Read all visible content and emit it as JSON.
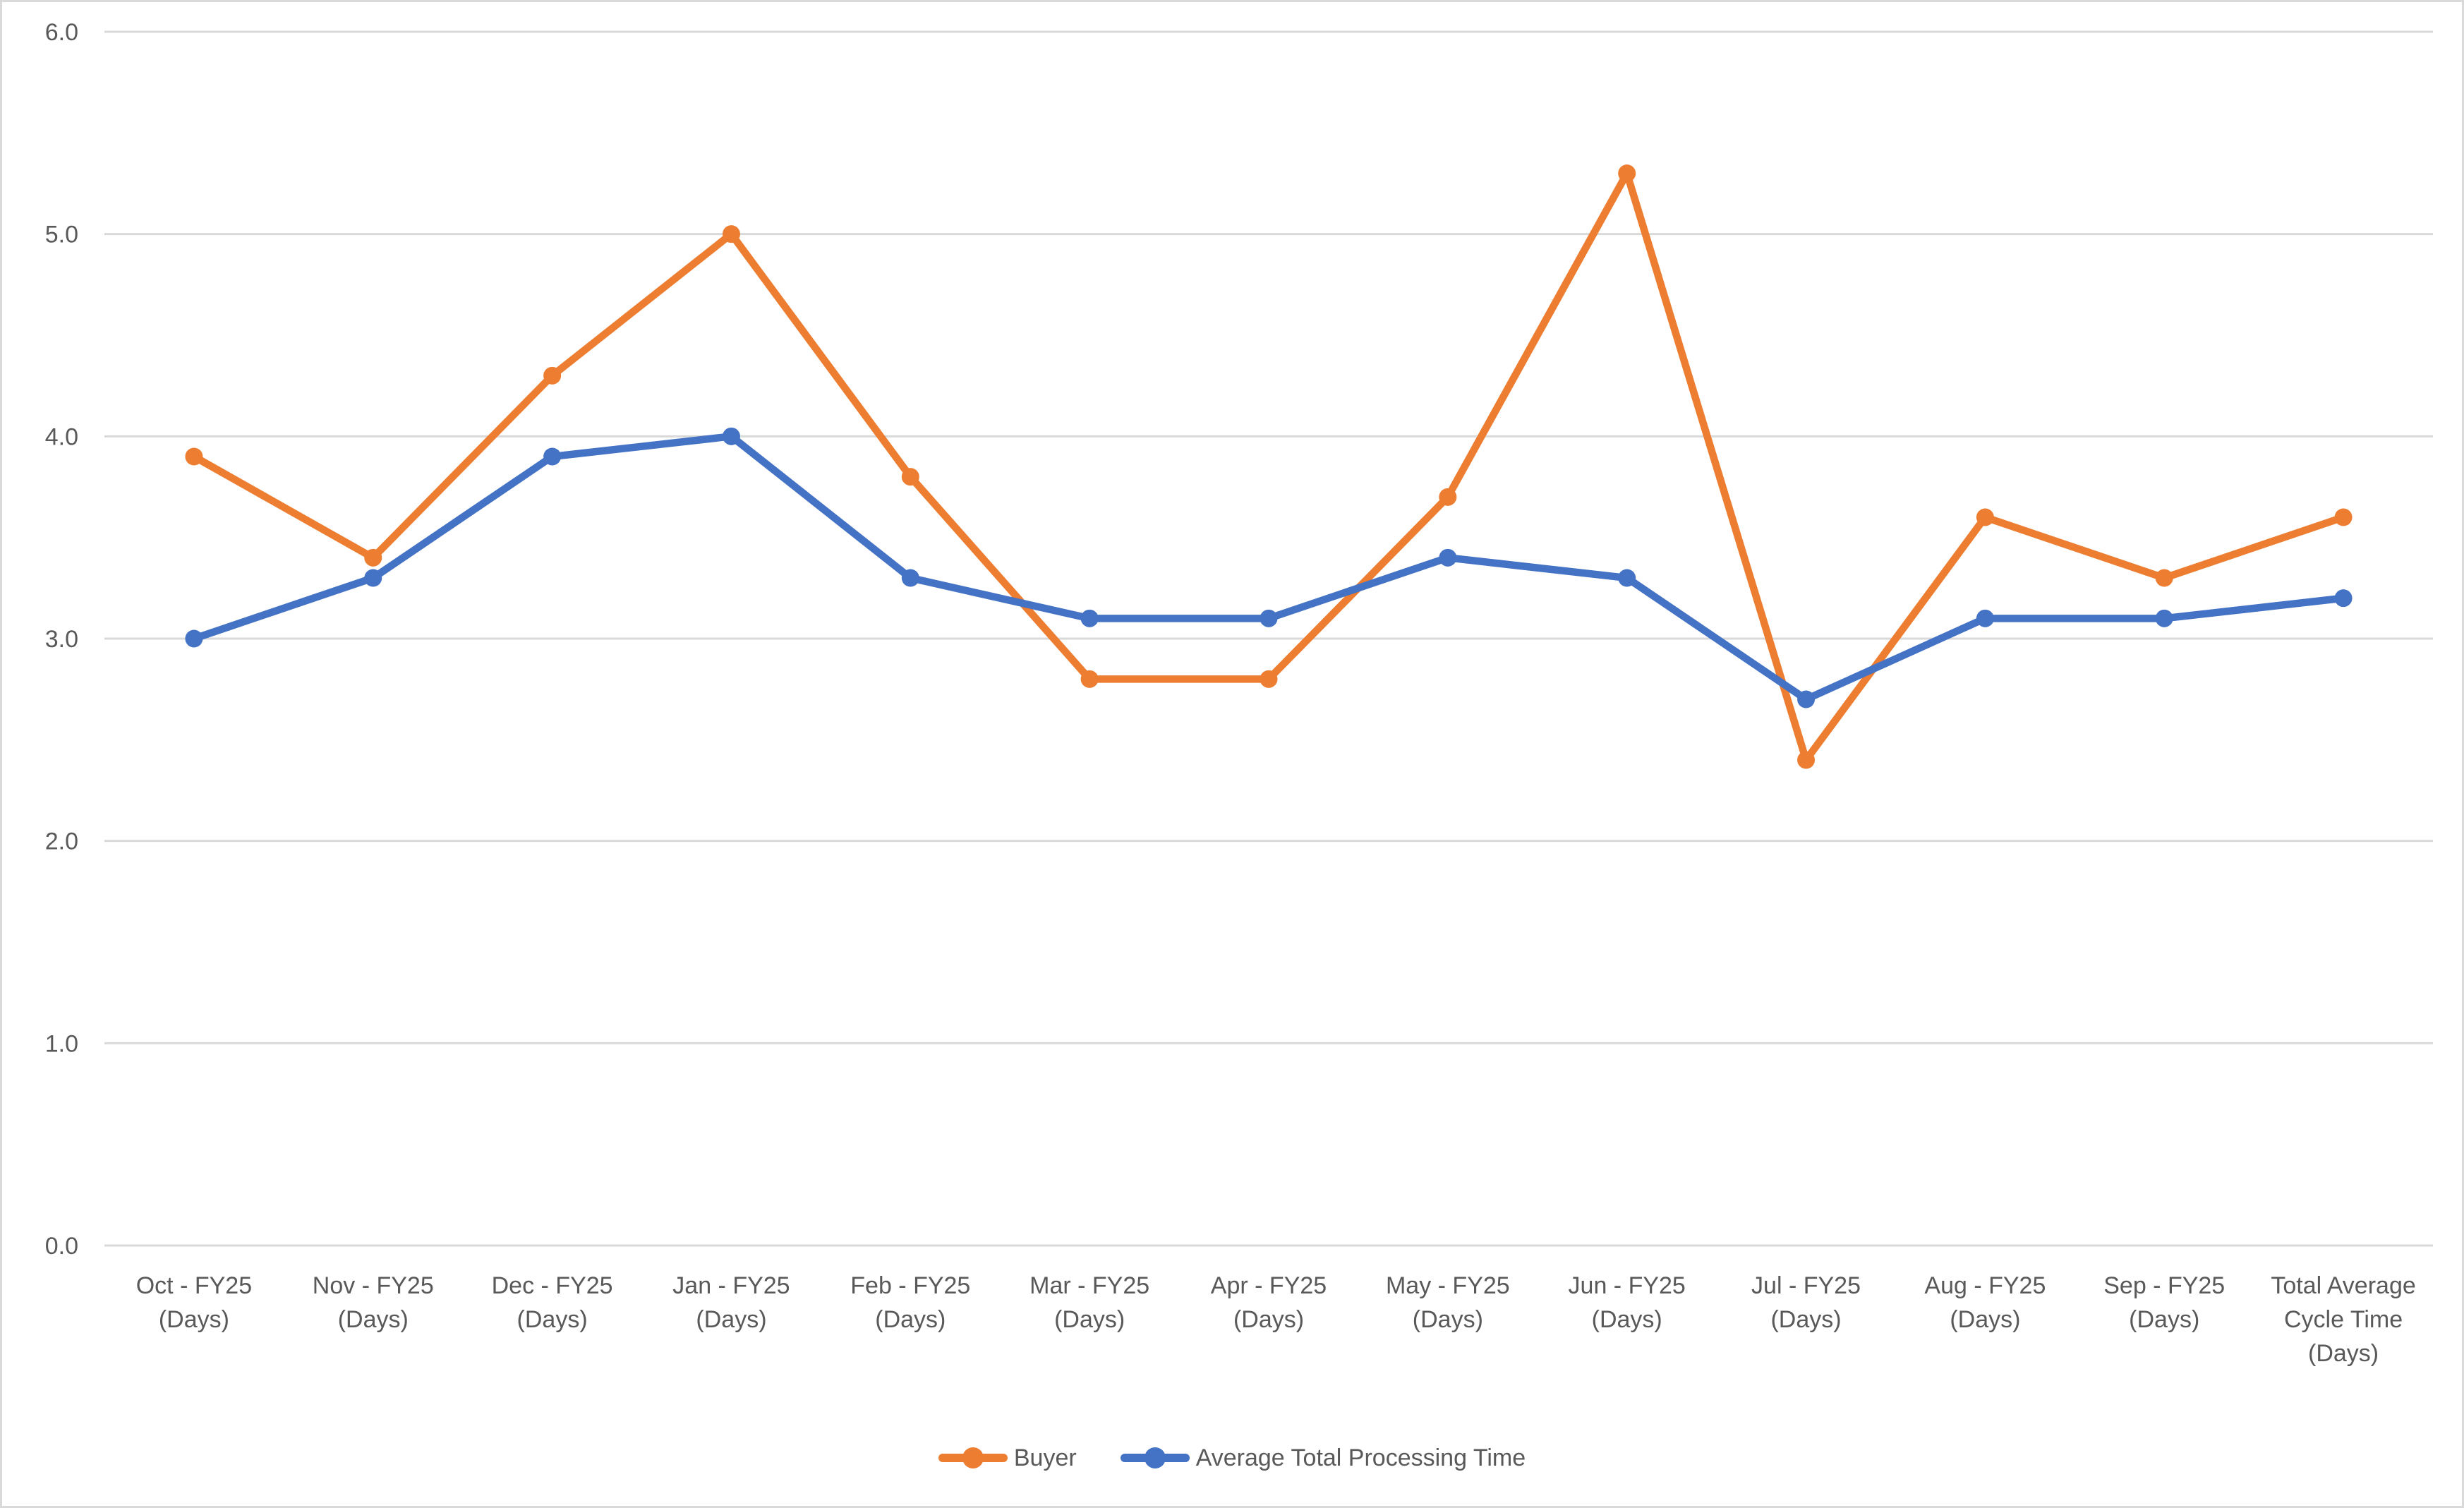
{
  "chart_data": {
    "type": "line",
    "title": "",
    "xlabel": "",
    "ylabel": "",
    "ylim": [
      0,
      6
    ],
    "ytick_step": 1.0,
    "ytick_labels": [
      "0.0",
      "1.0",
      "2.0",
      "3.0",
      "4.0",
      "5.0",
      "6.0"
    ],
    "grid": true,
    "legend_position": "bottom-center",
    "categories": [
      "Oct - FY25 (Days)",
      "Nov - FY25 (Days)",
      "Dec - FY25 (Days)",
      "Jan - FY25 (Days)",
      "Feb - FY25 (Days)",
      "Mar - FY25 (Days)",
      "Apr - FY25 (Days)",
      "May - FY25 (Days)",
      "Jun - FY25 (Days)",
      "Jul - FY25 (Days)",
      "Aug - FY25 (Days)",
      "Sep - FY25 (Days)",
      "Total Average Cycle Time (Days)"
    ],
    "category_label_lines": [
      [
        "Oct - FY25",
        "(Days)"
      ],
      [
        "Nov - FY25",
        "(Days)"
      ],
      [
        "Dec - FY25",
        "(Days)"
      ],
      [
        "Jan - FY25",
        "(Days)"
      ],
      [
        "Feb - FY25",
        "(Days)"
      ],
      [
        "Mar - FY25",
        "(Days)"
      ],
      [
        "Apr - FY25",
        "(Days)"
      ],
      [
        "May - FY25",
        "(Days)"
      ],
      [
        "Jun - FY25",
        "(Days)"
      ],
      [
        "Jul - FY25",
        "(Days)"
      ],
      [
        "Aug - FY25",
        "(Days)"
      ],
      [
        "Sep - FY25",
        "(Days)"
      ],
      [
        "Total Average",
        "Cycle Time",
        "(Days)"
      ]
    ],
    "series": [
      {
        "name": "Buyer",
        "color": "#ED7D31",
        "marker": "circle",
        "values": [
          3.9,
          3.4,
          4.3,
          5.0,
          3.8,
          2.8,
          2.8,
          3.7,
          5.3,
          2.4,
          3.6,
          3.3,
          3.6
        ]
      },
      {
        "name": "Average Total Processing Time",
        "color": "#4472C4",
        "marker": "circle",
        "values": [
          3.0,
          3.3,
          3.9,
          4.0,
          3.3,
          3.1,
          3.1,
          3.4,
          3.3,
          2.7,
          3.1,
          3.1,
          3.2
        ]
      }
    ]
  },
  "style": {
    "background": "#FFFFFF",
    "border_color": "#D9D9D9",
    "gridline_color": "#D9D9D9",
    "axis_line_color": "#D9D9D9",
    "text_color": "#595959"
  }
}
